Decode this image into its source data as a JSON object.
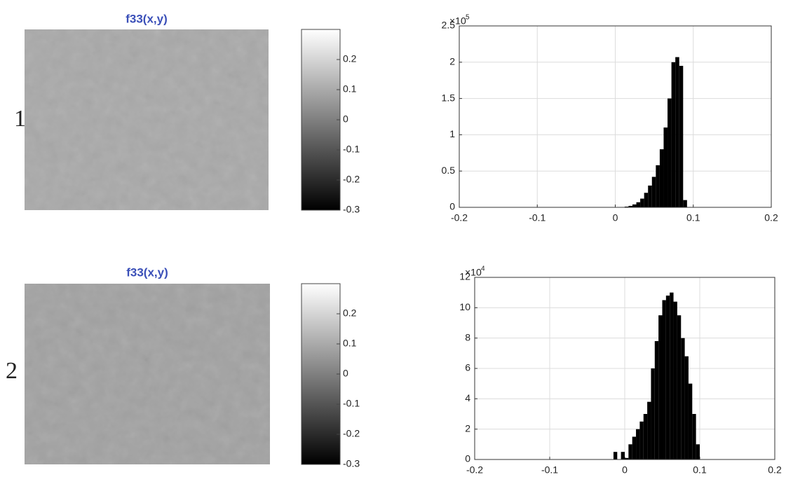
{
  "row_labels": [
    "1",
    "2"
  ],
  "chart_data": [
    {
      "type": "image",
      "title": "f33(x,y)",
      "clim": [
        -0.3,
        0.3
      ],
      "cticks": [
        0.2,
        0.1,
        0,
        -0.1,
        -0.2,
        -0.3
      ],
      "color": "#a9a9a9"
    },
    {
      "type": "histogram",
      "color": "#000000",
      "bins": [
        0.012,
        0.017,
        0.022,
        0.027,
        0.032,
        0.037,
        0.042,
        0.047,
        0.052,
        0.057,
        0.062,
        0.067,
        0.072,
        0.077,
        0.082,
        0.087,
        0.092
      ],
      "values": [
        1000,
        2000,
        4000,
        7000,
        12000,
        20000,
        30000,
        42000,
        58000,
        80000,
        110000,
        150000,
        200000,
        207000,
        195000,
        10000
      ],
      "xlim": [
        -0.2,
        0.2
      ],
      "xticks": [
        -0.2,
        -0.1,
        0,
        0.1,
        0.2
      ],
      "ylim": [
        0,
        250000
      ],
      "yticks": [
        {
          "value": 0,
          "label": "0"
        },
        {
          "value": 50000,
          "label": "0.5"
        },
        {
          "value": 100000,
          "label": "1"
        },
        {
          "value": 150000,
          "label": "1.5"
        },
        {
          "value": 200000,
          "label": "2"
        },
        {
          "value": 250000,
          "label": "2.5"
        }
      ],
      "y_offset_text": {
        "base": "×10",
        "exponent": "5"
      },
      "grid": true
    },
    {
      "type": "image",
      "title": "f33(x,y)",
      "clim": [
        -0.3,
        0.3
      ],
      "cticks": [
        0.2,
        0.1,
        0,
        -0.1,
        -0.2,
        -0.3
      ],
      "color": "#a2a2a2"
    },
    {
      "type": "histogram",
      "color": "#000000",
      "bins": [
        -0.015,
        -0.01,
        -0.005,
        0,
        0.005,
        0.01,
        0.015,
        0.02,
        0.025,
        0.03,
        0.035,
        0.04,
        0.045,
        0.05,
        0.055,
        0.06,
        0.065,
        0.07,
        0.075,
        0.08,
        0.085,
        0.09,
        0.095,
        0.1
      ],
      "values": [
        5000,
        0,
        5000,
        1000,
        10000,
        15000,
        20000,
        25000,
        30000,
        38000,
        60000,
        78000,
        95000,
        105000,
        108000,
        110000,
        104000,
        95000,
        80000,
        68000,
        50000,
        30000,
        10000
      ],
      "xlim": [
        -0.2,
        0.2
      ],
      "xticks": [
        -0.2,
        -0.1,
        0,
        0.1,
        0.2
      ],
      "ylim": [
        0,
        120000
      ],
      "yticks": [
        {
          "value": 0,
          "label": "0"
        },
        {
          "value": 20000,
          "label": "2"
        },
        {
          "value": 40000,
          "label": "4"
        },
        {
          "value": 60000,
          "label": "6"
        },
        {
          "value": 80000,
          "label": "8"
        },
        {
          "value": 100000,
          "label": "10"
        },
        {
          "value": 120000,
          "label": "12"
        }
      ],
      "y_offset_text": {
        "base": "×10",
        "exponent": "4"
      },
      "grid": true
    }
  ]
}
